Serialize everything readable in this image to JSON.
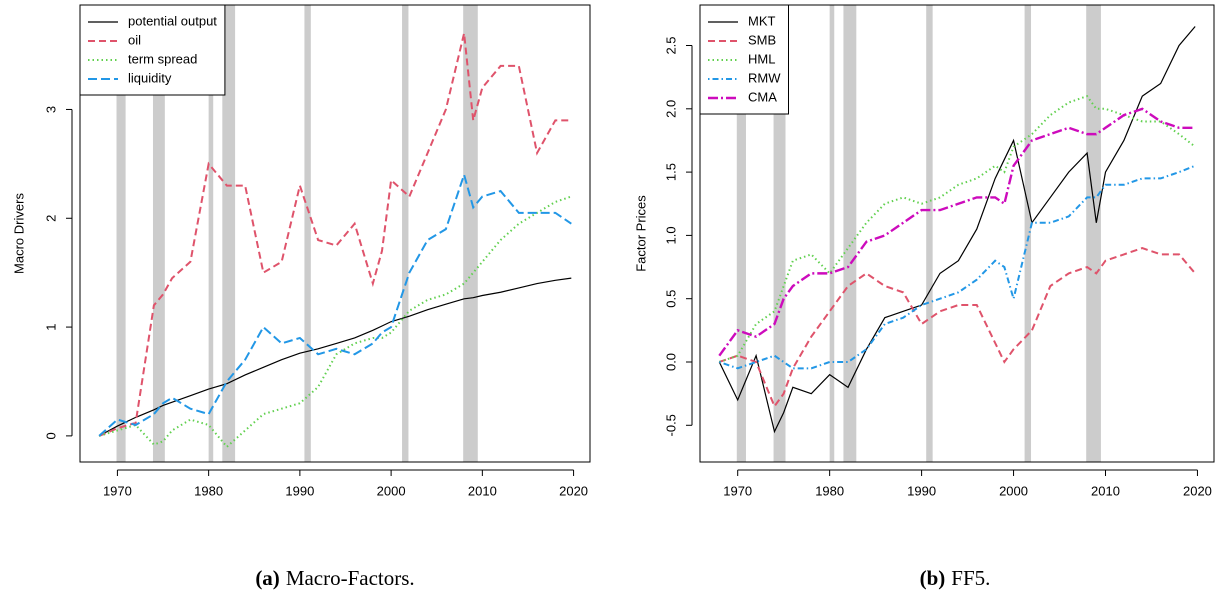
{
  "chart_data": [
    {
      "type": "line",
      "caption_label": "(a)",
      "caption": "Macro-Factors.",
      "y_label": "Macro Drivers",
      "xlim": [
        1965.9,
        2021.8
      ],
      "xticks": [
        1970,
        1980,
        1990,
        2000,
        2010,
        2020
      ],
      "ylim": [
        -0.24,
        3.96
      ],
      "yticks": [
        0,
        1,
        2,
        3
      ],
      "legend": "topleft",
      "recessions": [
        [
          1969.9,
          1970.9
        ],
        [
          1973.9,
          1975.2
        ],
        [
          1980.0,
          1980.5
        ],
        [
          1981.5,
          1982.9
        ],
        [
          1990.5,
          1991.2
        ],
        [
          2001.2,
          2001.9
        ],
        [
          2007.9,
          2009.5
        ]
      ],
      "x": [
        1968,
        1970,
        1972,
        1974,
        1975,
        1976,
        1978,
        1980,
        1982,
        1984,
        1986,
        1988,
        1990,
        1992,
        1994,
        1996,
        1998,
        1999,
        2000,
        2002,
        2004,
        2006,
        2008,
        2009,
        2010,
        2012,
        2014,
        2016,
        2018,
        2019.75
      ],
      "series": [
        {
          "name": "potential output",
          "color": "#000000",
          "dash": "none",
          "width": 1.2,
          "values": [
            0,
            0.09,
            0.17,
            0.24,
            0.28,
            0.31,
            0.37,
            0.43,
            0.48,
            0.56,
            0.63,
            0.7,
            0.76,
            0.8,
            0.85,
            0.9,
            0.97,
            1.01,
            1.05,
            1.1,
            1.16,
            1.21,
            1.26,
            1.27,
            1.29,
            1.32,
            1.36,
            1.4,
            1.43,
            1.45
          ]
        },
        {
          "name": "oil",
          "color": "#DF536B",
          "dash": "7,4",
          "width": 2,
          "values": [
            0,
            0.07,
            0.12,
            1.2,
            1.3,
            1.45,
            1.6,
            2.5,
            2.3,
            2.3,
            1.5,
            1.6,
            2.3,
            1.8,
            1.75,
            1.95,
            1.4,
            1.7,
            2.35,
            2.2,
            2.6,
            3.0,
            3.7,
            2.9,
            3.2,
            3.4,
            3.4,
            2.6,
            2.9,
            2.9
          ]
        },
        {
          "name": "term spread",
          "color": "#61D04F",
          "dash": "1.5,3",
          "width": 2,
          "values": [
            0,
            0.05,
            0.1,
            -0.08,
            -0.05,
            0.05,
            0.15,
            0.1,
            -0.1,
            0.05,
            0.2,
            0.25,
            0.3,
            0.45,
            0.75,
            0.85,
            0.9,
            0.9,
            0.95,
            1.15,
            1.25,
            1.3,
            1.4,
            1.5,
            1.6,
            1.8,
            1.95,
            2.05,
            2.15,
            2.2
          ]
        },
        {
          "name": "liquidity",
          "color": "#2297E6",
          "dash": "9,4",
          "width": 2,
          "values": [
            0,
            0.15,
            0.1,
            0.2,
            0.3,
            0.35,
            0.25,
            0.2,
            0.5,
            0.7,
            1.0,
            0.85,
            0.9,
            0.75,
            0.8,
            0.75,
            0.85,
            0.95,
            1.0,
            1.5,
            1.8,
            1.9,
            2.4,
            2.1,
            2.2,
            2.25,
            2.05,
            2.05,
            2.05,
            1.95
          ]
        }
      ]
    },
    {
      "type": "line",
      "caption_label": "(b)",
      "caption": "FF5.",
      "y_label": "Factor Prices",
      "xlim": [
        1965.9,
        2021.8
      ],
      "xticks": [
        1970,
        1980,
        1990,
        2000,
        2010,
        2020
      ],
      "ylim": [
        -0.79,
        2.82
      ],
      "yticks": [
        -0.5,
        {
          "value": 0,
          "label": "0.0"
        },
        0.5,
        {
          "value": 1,
          "label": "1.0"
        },
        1.5,
        {
          "value": 2,
          "label": "2.0"
        },
        2.5
      ],
      "legend": "topleft",
      "recessions": [
        [
          1969.9,
          1970.9
        ],
        [
          1973.9,
          1975.2
        ],
        [
          1980.0,
          1980.5
        ],
        [
          1981.5,
          1982.9
        ],
        [
          1990.5,
          1991.2
        ],
        [
          2001.2,
          2001.9
        ],
        [
          2007.9,
          2009.5
        ]
      ],
      "x": [
        1968,
        1970,
        1972,
        1974,
        1975,
        1976,
        1978,
        1980,
        1982,
        1984,
        1986,
        1988,
        1990,
        1992,
        1994,
        1996,
        1998,
        1999,
        2000,
        2002,
        2004,
        2006,
        2008,
        2009,
        2010,
        2012,
        2014,
        2016,
        2018,
        2019.75
      ],
      "series": [
        {
          "name": "MKT",
          "color": "#000000",
          "dash": "none",
          "width": 1.2,
          "values": [
            0,
            -0.3,
            0.05,
            -0.55,
            -0.4,
            -0.2,
            -0.25,
            -0.1,
            -0.2,
            0.1,
            0.35,
            0.4,
            0.45,
            0.7,
            0.8,
            1.05,
            1.45,
            1.6,
            1.75,
            1.1,
            1.3,
            1.5,
            1.65,
            1.1,
            1.5,
            1.75,
            2.1,
            2.2,
            2.5,
            2.65
          ]
        },
        {
          "name": "SMB",
          "color": "#DF536B",
          "dash": "7,4",
          "width": 2,
          "values": [
            0,
            0.05,
            0.0,
            -0.35,
            -0.25,
            -0.05,
            0.2,
            0.4,
            0.6,
            0.7,
            0.6,
            0.55,
            0.3,
            0.4,
            0.45,
            0.45,
            0.15,
            0.0,
            0.1,
            0.25,
            0.6,
            0.7,
            0.75,
            0.7,
            0.8,
            0.85,
            0.9,
            0.85,
            0.85,
            0.7
          ]
        },
        {
          "name": "HML",
          "color": "#61D04F",
          "dash": "1.5,3",
          "width": 2,
          "values": [
            0,
            0.05,
            0.3,
            0.4,
            0.6,
            0.8,
            0.85,
            0.7,
            0.9,
            1.1,
            1.25,
            1.3,
            1.25,
            1.3,
            1.4,
            1.45,
            1.55,
            1.5,
            1.7,
            1.8,
            1.95,
            2.05,
            2.1,
            2.0,
            2.0,
            1.95,
            1.9,
            1.9,
            1.8,
            1.7
          ]
        },
        {
          "name": "RMW",
          "color": "#2297E6",
          "dash": "1.5,3,6,3",
          "width": 2,
          "values": [
            0,
            -0.05,
            0.0,
            0.05,
            0.0,
            -0.05,
            -0.05,
            0.0,
            0.0,
            0.1,
            0.3,
            0.35,
            0.45,
            0.5,
            0.55,
            0.65,
            0.8,
            0.75,
            0.5,
            1.1,
            1.1,
            1.15,
            1.3,
            1.3,
            1.4,
            1.4,
            1.45,
            1.45,
            1.5,
            1.55
          ]
        },
        {
          "name": "CMA",
          "color": "#CD0BBC",
          "dash": "10,3,2,3",
          "width": 2.4,
          "values": [
            0.05,
            0.25,
            0.2,
            0.3,
            0.5,
            0.6,
            0.7,
            0.7,
            0.75,
            0.95,
            1.0,
            1.1,
            1.2,
            1.2,
            1.25,
            1.3,
            1.3,
            1.25,
            1.55,
            1.75,
            1.8,
            1.85,
            1.8,
            1.8,
            1.85,
            1.95,
            2.0,
            1.9,
            1.85,
            1.85
          ]
        }
      ]
    }
  ]
}
